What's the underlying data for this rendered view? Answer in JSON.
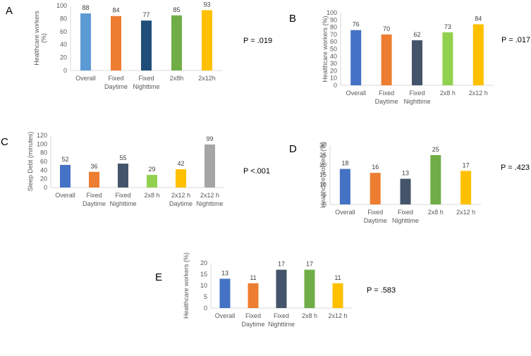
{
  "chart_data": [
    {
      "type": "bar",
      "panel_label": "A",
      "p_value": "P = .019",
      "ylabel": "Healthcare workers (%)",
      "ylabel_lines": [
        "Healthcare workers",
        "(%)"
      ],
      "ylim": [
        0,
        100
      ],
      "yticks": [
        0,
        20,
        40,
        60,
        80,
        100
      ],
      "categories": [
        [
          "Overall"
        ],
        [
          "Fixed",
          "Daytime"
        ],
        [
          "Fixed",
          "Nighttime"
        ],
        [
          "2x8h"
        ],
        [
          "2x12h"
        ]
      ],
      "values": [
        88,
        84,
        77,
        85,
        93
      ],
      "colors": [
        "#5b9bd5",
        "#ed7d31",
        "#1f4e79",
        "#70ad47",
        "#ffc000"
      ]
    },
    {
      "type": "bar",
      "panel_label": "B",
      "p_value": "P = .017",
      "ylabel": "Healthcare workers (%)",
      "ylabel_lines": [
        "Healthcare workers (%)"
      ],
      "ylim": [
        0,
        100
      ],
      "yticks": [
        0,
        10,
        20,
        30,
        40,
        50,
        60,
        70,
        80,
        90,
        100
      ],
      "categories": [
        [
          "Overall"
        ],
        [
          "Fixed",
          "Daytime"
        ],
        [
          "Fixed",
          "Nighttime"
        ],
        [
          "2x8 h"
        ],
        [
          "2x12 h"
        ]
      ],
      "values": [
        76,
        70,
        62,
        73,
        84
      ],
      "colors": [
        "#4472c4",
        "#ed7d31",
        "#44546a",
        "#92d050",
        "#ffc000"
      ]
    },
    {
      "type": "bar",
      "panel_label": "C",
      "p_value": "P <.001",
      "ylabel": "Sleep Debt (minutes)",
      "ylabel_lines": [
        "Sleep Debt (minutes)"
      ],
      "ylim": [
        0,
        120
      ],
      "yticks": [
        0,
        20,
        40,
        60,
        80,
        100,
        120
      ],
      "categories": [
        [
          "Overall"
        ],
        [
          "Fixed",
          "Daytime"
        ],
        [
          "Fixed",
          "Nighttime"
        ],
        [
          "2x8 h"
        ],
        [
          "2x12 h",
          "Daytime"
        ],
        [
          "2x12 h",
          "Nighttime"
        ]
      ],
      "values": [
        52,
        36,
        55,
        29,
        42,
        99
      ],
      "colors": [
        "#4472c4",
        "#ed7d31",
        "#44546a",
        "#92d050",
        "#ffc000",
        "#a5a5a5"
      ]
    },
    {
      "type": "bar",
      "panel_label": "D",
      "p_value": "P = .423",
      "ylabel": "Healthcare workers (%)",
      "ylabel_lines": [
        "Healthcare workers (%)"
      ],
      "ylim": [
        0,
        30
      ],
      "yticks": [
        0,
        5,
        10,
        15,
        20,
        25,
        30
      ],
      "categories": [
        [
          "Overall"
        ],
        [
          "Fixed",
          "Daytime"
        ],
        [
          "Fixed",
          "Nighttime"
        ],
        [
          "2x8 h"
        ],
        [
          "2x12 h"
        ]
      ],
      "values": [
        18,
        16,
        13,
        25,
        17
      ],
      "colors": [
        "#4472c4",
        "#ed7d31",
        "#44546a",
        "#70ad47",
        "#ffc000"
      ]
    },
    {
      "type": "bar",
      "panel_label": "E",
      "p_value": "P = .583",
      "ylabel": "Healthcare workers (%)",
      "ylabel_lines": [
        "Healthcare workers (%)"
      ],
      "ylim": [
        0,
        20
      ],
      "yticks": [
        0,
        5,
        10,
        15,
        20
      ],
      "categories": [
        [
          "Overall"
        ],
        [
          "Fixed",
          "Daytime"
        ],
        [
          "Fixed",
          "Nighttime"
        ],
        [
          "2x8 h"
        ],
        [
          "2x12 h"
        ]
      ],
      "values": [
        13,
        11,
        17,
        17,
        11
      ],
      "colors": [
        "#4472c4",
        "#ed7d31",
        "#44546a",
        "#70ad47",
        "#ffc000"
      ]
    }
  ]
}
